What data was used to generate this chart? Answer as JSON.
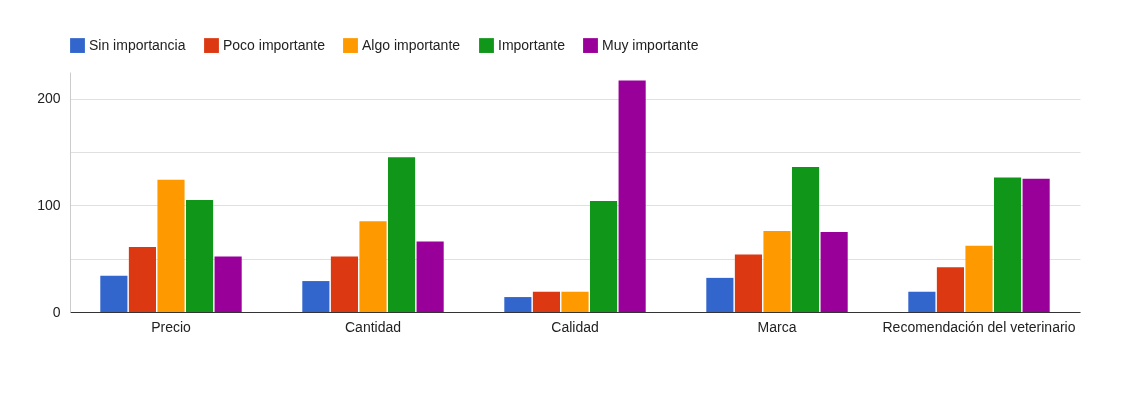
{
  "chart_data": {
    "type": "bar",
    "categories": [
      "Precio",
      "Cantidad",
      "Calidad",
      "Marca",
      "Recomendación del veterinario"
    ],
    "series": [
      {
        "name": "Sin importancia",
        "color": "#3366cc",
        "values": [
          34,
          29,
          14,
          32,
          19
        ]
      },
      {
        "name": "Poco importante",
        "color": "#dc3912",
        "values": [
          61,
          52,
          19,
          54,
          42
        ]
      },
      {
        "name": "Algo importante",
        "color": "#ff9900",
        "values": [
          124,
          85,
          19,
          76,
          62
        ]
      },
      {
        "name": "Importante",
        "color": "#109618",
        "values": [
          105,
          145,
          104,
          136,
          126
        ]
      },
      {
        "name": "Muy importante",
        "color": "#990099",
        "values": [
          52,
          66,
          217,
          75,
          125
        ]
      }
    ],
    "ylim": [
      0,
      225
    ],
    "yticks": [
      0,
      {
        "value": 50,
        "label": null
      },
      100,
      {
        "value": 150,
        "label": null
      },
      200
    ],
    "grid": true,
    "legend": "top left"
  }
}
